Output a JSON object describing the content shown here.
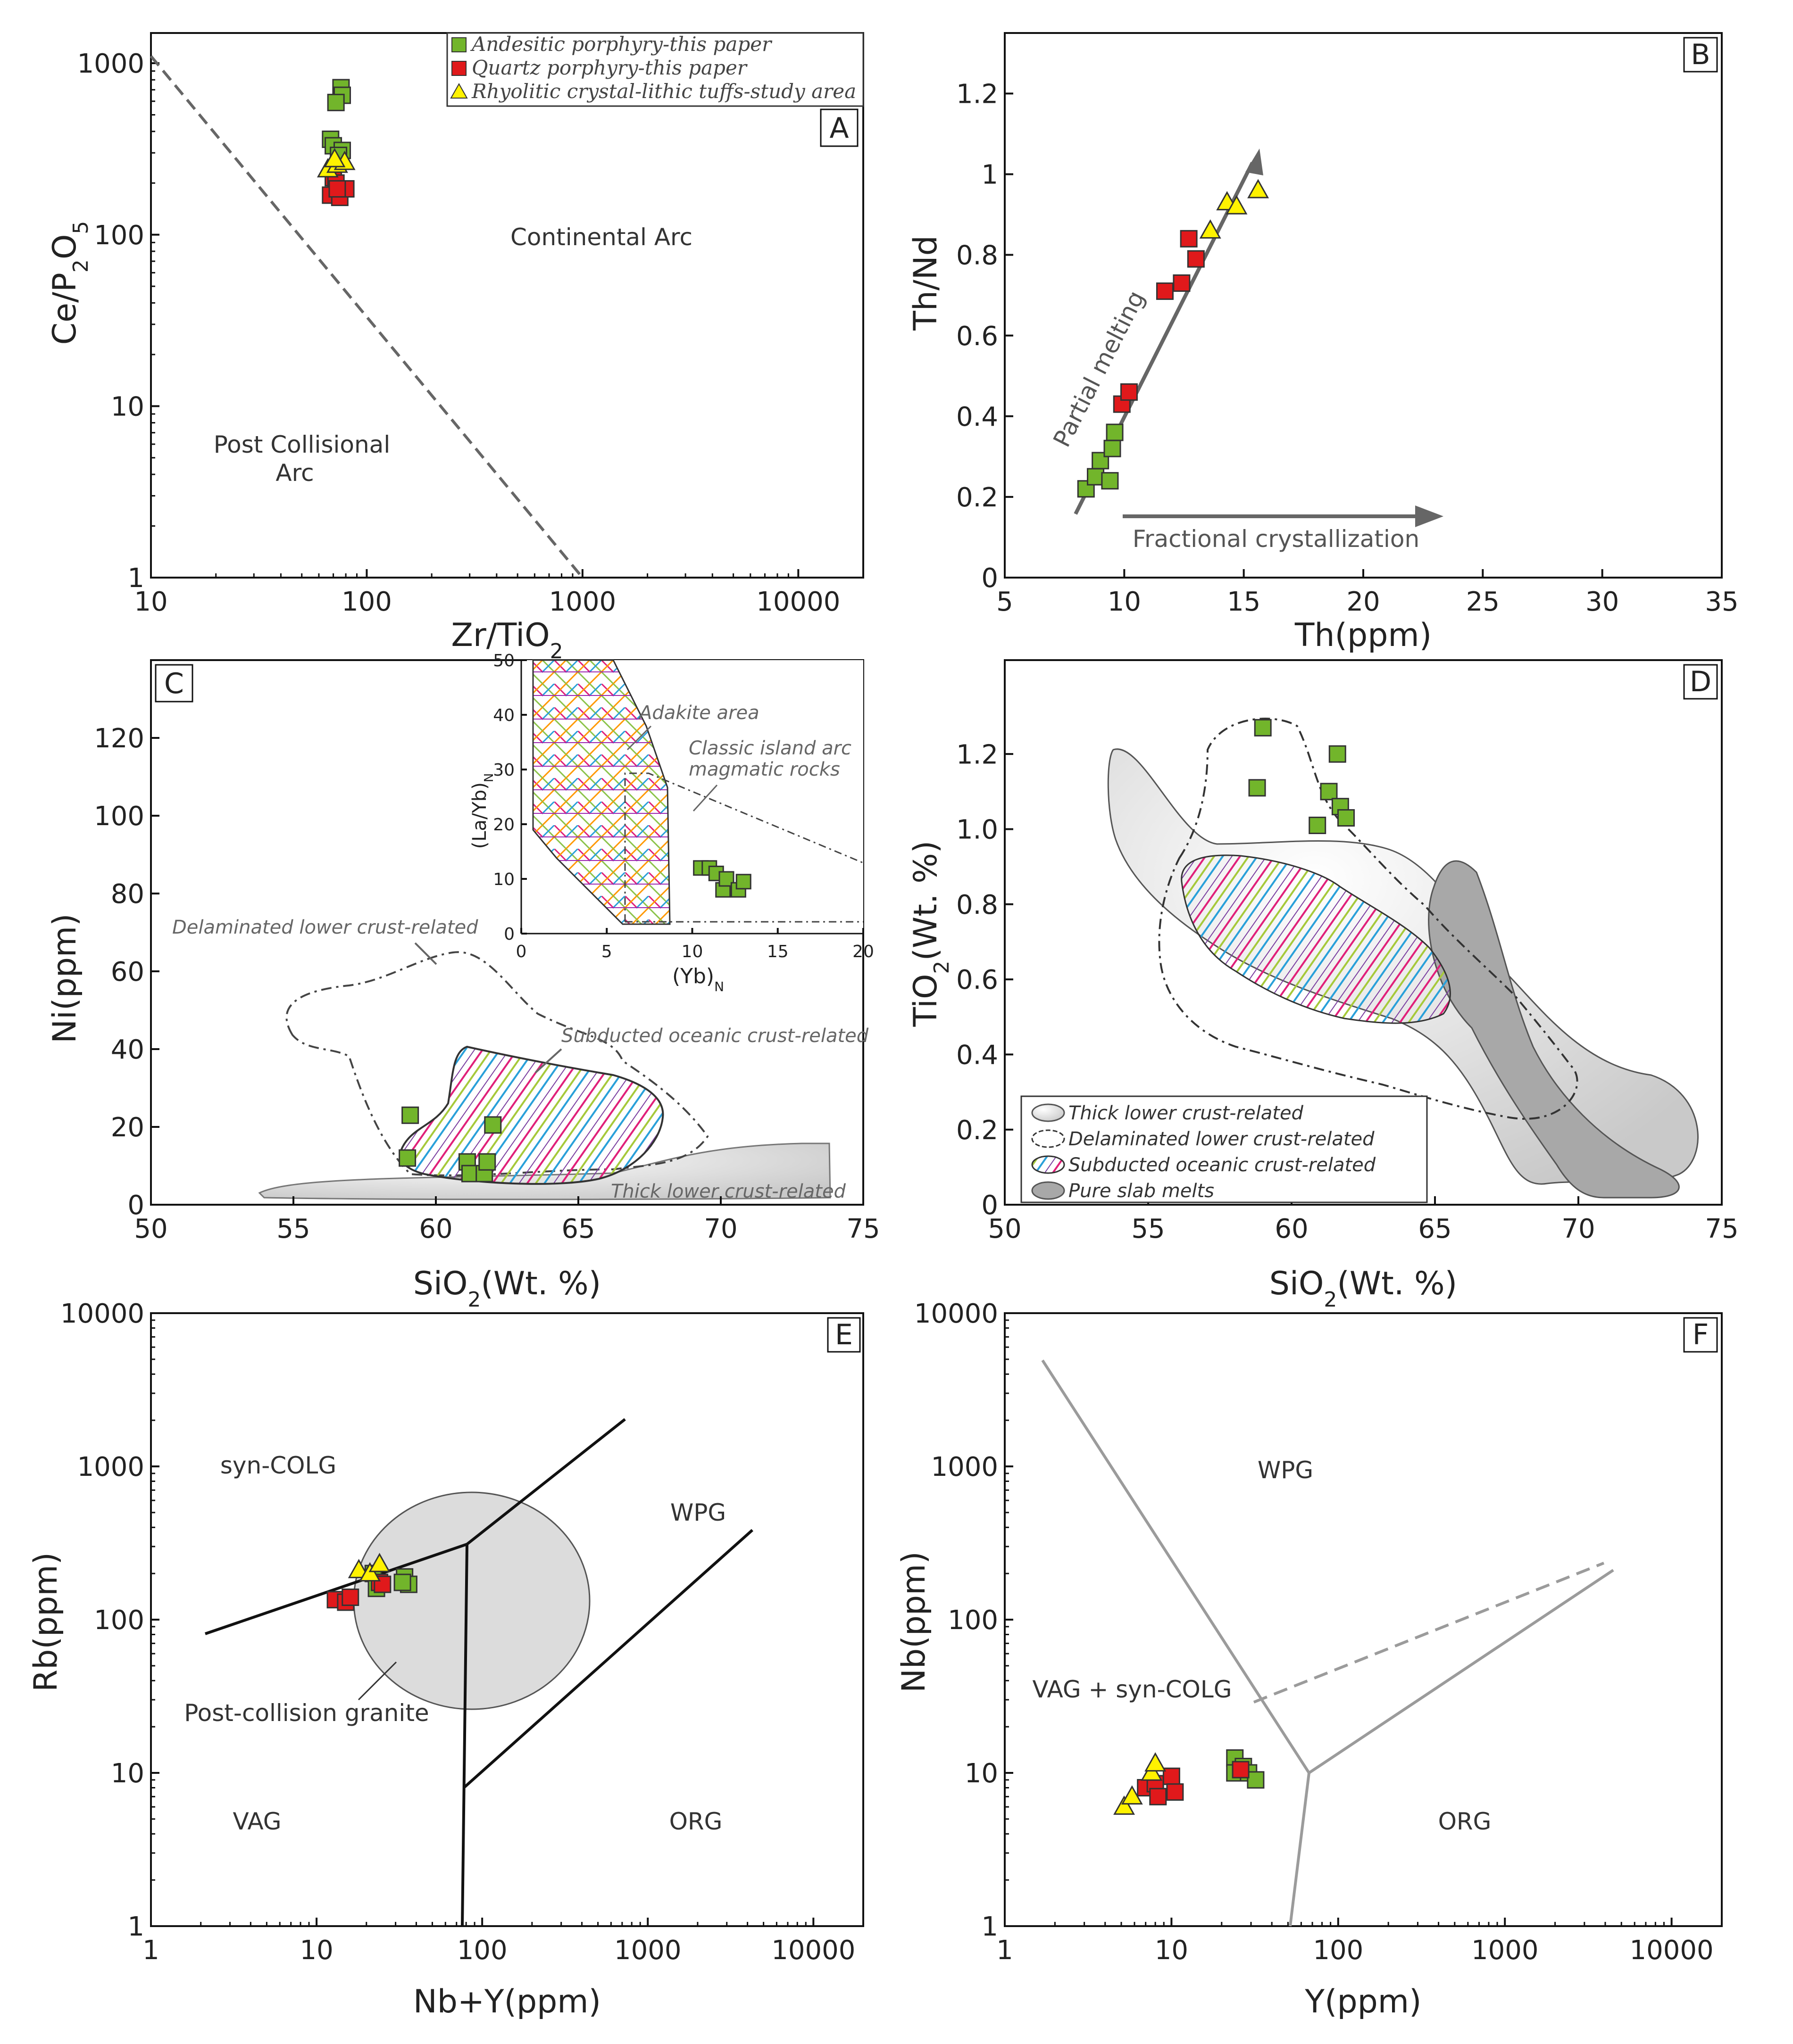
{
  "colors": {
    "andesitic": "#72b52b",
    "quartz": "#e0191b",
    "rhyolitic": "#fff200",
    "grey_field": "#dcdcdc",
    "dark_field": "#a8a8a8"
  },
  "legend": {
    "andesitic": "Andesitic porphyry-this paper",
    "quartz": "Quartz porphyry-this paper",
    "rhyolitic": "Rhyolitic crystal-lithic tuffs-study area"
  },
  "legend_D": {
    "thick": "Thick lower crust-related",
    "delam": "Delaminated lower crust-related",
    "subducted": "Subducted oceanic crust-related",
    "slab": "Pure slab melts"
  },
  "chart_data": [
    {
      "panel": "A",
      "type": "scatter",
      "xscale": "log",
      "yscale": "log",
      "xlim": [
        10,
        20000
      ],
      "ylim": [
        1,
        1500
      ],
      "xlabel": "Zr/TiO",
      "xlabel_sub": "2",
      "ylabel": "Ce/P",
      "ylabel_sub1": "2",
      "ylabel_mid": "O",
      "ylabel_sub2": "5",
      "xticks": [
        "10",
        "100",
        "1000",
        "10000"
      ],
      "yticks": [
        "1",
        "10",
        "100",
        "1000"
      ],
      "regions": [
        "Continental Arc",
        "Post Collisional",
        "Arc"
      ],
      "series": [
        {
          "name": "andesitic",
          "points": [
            [
              76,
              720
            ],
            [
              77,
              650
            ],
            [
              72,
              590
            ],
            [
              68,
              360
            ],
            [
              70,
              330
            ],
            [
              77,
              310
            ],
            [
              74,
              290
            ]
          ]
        },
        {
          "name": "quartz",
          "points": [
            [
              70,
              215
            ],
            [
              72,
              200
            ],
            [
              68,
              170
            ],
            [
              75,
              165
            ],
            [
              80,
              185
            ],
            [
              73,
              185
            ]
          ]
        },
        {
          "name": "rhyolitic",
          "points": [
            [
              66,
              240
            ],
            [
              73,
              255
            ],
            [
              79,
              265
            ],
            [
              71,
              275
            ]
          ]
        }
      ]
    },
    {
      "panel": "B",
      "type": "scatter",
      "xlim": [
        5,
        35
      ],
      "ylim": [
        0,
        1.35
      ],
      "xlabel": "Th(ppm)",
      "ylabel": "Th/Nd",
      "xticks": [
        "5",
        "10",
        "15",
        "20",
        "25",
        "30",
        "35"
      ],
      "yticks": [
        "0",
        "0.2",
        "0.4",
        "0.6",
        "0.8",
        "1",
        "1.2"
      ],
      "annotations": [
        "Partial melting",
        "Fractional crystallization"
      ],
      "series": [
        {
          "name": "andesitic",
          "points": [
            [
              8.4,
              0.22
            ],
            [
              8.8,
              0.25
            ],
            [
              9.0,
              0.29
            ],
            [
              9.4,
              0.24
            ],
            [
              9.5,
              0.32
            ],
            [
              9.6,
              0.36
            ]
          ]
        },
        {
          "name": "quartz",
          "points": [
            [
              9.9,
              0.43
            ],
            [
              10.2,
              0.46
            ],
            [
              11.7,
              0.71
            ],
            [
              12.4,
              0.73
            ],
            [
              12.7,
              0.84
            ],
            [
              13.0,
              0.79
            ]
          ]
        },
        {
          "name": "rhyolitic",
          "points": [
            [
              13.6,
              0.86
            ],
            [
              14.3,
              0.93
            ],
            [
              14.7,
              0.92
            ],
            [
              15.6,
              0.96
            ]
          ]
        }
      ]
    },
    {
      "panel": "C",
      "type": "scatter",
      "xlim": [
        50,
        75
      ],
      "ylim": [
        0,
        140
      ],
      "xlabel": "SiO",
      "xlabel_sub": "2",
      "xlabel_tail": "(Wt. %)",
      "ylabel": "Ni(ppm)",
      "xticks": [
        "50",
        "55",
        "60",
        "65",
        "70",
        "75"
      ],
      "yticks": [
        "0",
        "20",
        "40",
        "60",
        "80",
        "100",
        "120"
      ],
      "annotations": [
        "Delaminated lower crust-related",
        "Subducted oceanic crust-related",
        "Thick lower crust-related"
      ],
      "series": [
        {
          "name": "andesitic",
          "points": [
            [
              59,
              12
            ],
            [
              59.1,
              23
            ],
            [
              61.1,
              11
            ],
            [
              61.2,
              8
            ],
            [
              61.7,
              8
            ],
            [
              61.8,
              11
            ],
            [
              62,
              20.5
            ]
          ]
        }
      ],
      "inset": {
        "xlim": [
          0,
          20
        ],
        "ylim": [
          0,
          50
        ],
        "xlabel": "(Yb)",
        "xlabel_sub": "N",
        "ylabel": "(La/Yb)",
        "ylabel_sub": "N",
        "xticks": [
          "0",
          "5",
          "10",
          "15",
          "20"
        ],
        "yticks": [
          "0",
          "10",
          "20",
          "30",
          "40",
          "50"
        ],
        "annotations": [
          "Adakite area",
          "Classic island arc",
          "magmatic rocks"
        ],
        "points": [
          [
            10.5,
            12
          ],
          [
            11,
            12
          ],
          [
            11.4,
            11
          ],
          [
            11.8,
            8
          ],
          [
            12,
            10
          ],
          [
            12.7,
            8
          ],
          [
            13,
            9.5
          ]
        ]
      }
    },
    {
      "panel": "D",
      "type": "scatter",
      "xlim": [
        50,
        75
      ],
      "ylim": [
        0,
        1.45
      ],
      "xlabel": "SiO",
      "xlabel_sub": "2",
      "xlabel_tail": "(Wt. %)",
      "ylabel": "TiO",
      "ylabel_sub": "2",
      "ylabel_tail": "(Wt. %)",
      "xticks": [
        "50",
        "55",
        "60",
        "65",
        "70",
        "75"
      ],
      "yticks": [
        "0",
        "0.2",
        "0.4",
        "0.6",
        "0.8",
        "1.0",
        "1.2"
      ],
      "series": [
        {
          "name": "andesitic",
          "points": [
            [
              58.8,
              1.11
            ],
            [
              59,
              1.27
            ],
            [
              60.9,
              1.01
            ],
            [
              61.3,
              1.1
            ],
            [
              61.6,
              1.2
            ],
            [
              61.7,
              1.06
            ],
            [
              61.9,
              1.03
            ]
          ]
        }
      ]
    },
    {
      "panel": "E",
      "type": "scatter",
      "xscale": "log",
      "yscale": "log",
      "xlim": [
        1,
        20000
      ],
      "ylim": [
        1,
        10000
      ],
      "xlabel": "Nb+Y(ppm)",
      "ylabel": "Rb(ppm)",
      "xticks": [
        "1",
        "10",
        "100",
        "1000",
        "10000"
      ],
      "yticks": [
        "1",
        "10",
        "100",
        "1000",
        "10000"
      ],
      "regions": [
        "syn-COLG",
        "WPG",
        "VAG",
        "ORG",
        "Post-collision granite"
      ],
      "series": [
        {
          "name": "andesitic",
          "points": [
            [
              22,
              200
            ],
            [
              23,
              160
            ],
            [
              34,
              190
            ],
            [
              36,
              170
            ],
            [
              33,
              175
            ]
          ]
        },
        {
          "name": "quartz",
          "points": [
            [
              13,
              135
            ],
            [
              15,
              130
            ],
            [
              16,
              140
            ],
            [
              24,
              175
            ],
            [
              25,
              170
            ]
          ]
        },
        {
          "name": "rhyolitic",
          "points": [
            [
              18,
              210
            ],
            [
              21,
              200
            ],
            [
              24,
              230
            ]
          ]
        }
      ]
    },
    {
      "panel": "F",
      "type": "scatter",
      "xscale": "log",
      "yscale": "log",
      "xlim": [
        1,
        20000
      ],
      "ylim": [
        1,
        10000
      ],
      "xlabel": "Y(ppm)",
      "ylabel": "Nb(ppm)",
      "xticks": [
        "1",
        "10",
        "100",
        "1000",
        "10000"
      ],
      "yticks": [
        "1",
        "10",
        "100",
        "1000",
        "10000"
      ],
      "regions": [
        "WPG",
        "VAG + syn-COLG",
        "ORG"
      ],
      "series": [
        {
          "name": "andesitic",
          "points": [
            [
              24,
              12.5
            ],
            [
              24,
              10
            ],
            [
              27,
              11
            ],
            [
              29,
              10
            ],
            [
              32,
              9
            ]
          ]
        },
        {
          "name": "quartz",
          "points": [
            [
              7,
              8
            ],
            [
              8,
              8.5
            ],
            [
              8.3,
              7
            ],
            [
              10,
              9.5
            ],
            [
              10.5,
              7.5
            ],
            [
              26,
              10.5
            ]
          ]
        },
        {
          "name": "rhyolitic",
          "points": [
            [
              5.2,
              6
            ],
            [
              5.8,
              7
            ],
            [
              7.6,
              10
            ],
            [
              8,
              11.5
            ]
          ]
        }
      ]
    }
  ]
}
